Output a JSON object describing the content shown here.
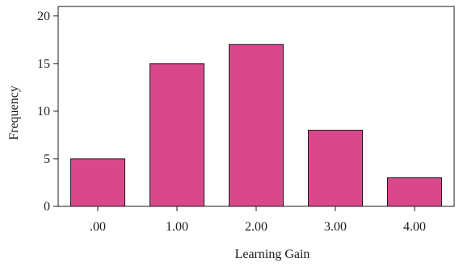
{
  "chart_data": {
    "type": "bar",
    "title": "",
    "xlabel": "Learning Gain",
    "ylabel": "Frequency",
    "categories": [
      ".00",
      "1.00",
      "2.00",
      "3.00",
      "4.00"
    ],
    "values": [
      5,
      15,
      17,
      8,
      3
    ],
    "ylim": [
      0,
      21
    ],
    "yticks": [
      "0",
      "5",
      "10",
      "15",
      "20"
    ],
    "grid": false,
    "legend": "none",
    "colors": {
      "bar_fill": "#d9488a",
      "bar_stroke": "#1a1a1a",
      "axis": "#1a1a1a"
    }
  }
}
